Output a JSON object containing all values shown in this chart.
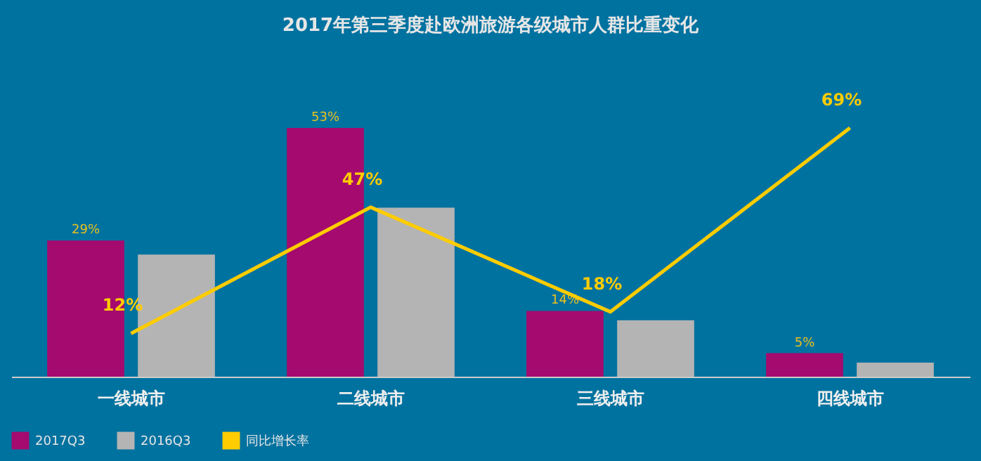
{
  "chart_data": {
    "type": "bar",
    "title": "2017年第三季度赴欧洲旅游各级城市人群比重变化",
    "categories": [
      "一线城市",
      "二线城市",
      "三线城市",
      "四线城市"
    ],
    "series": [
      {
        "name": "2017Q3",
        "color": "#a50a6e",
        "values": [
          29,
          53,
          14,
          5
        ],
        "value_labels": [
          "29%",
          "53%",
          "14%",
          "5%"
        ]
      },
      {
        "name": "2016Q3",
        "color": "#b4b4b4",
        "values": [
          26,
          36,
          12,
          3
        ]
      },
      {
        "name": "同比增长率",
        "type": "line",
        "axis": "y2",
        "color": "#ffcc00",
        "values": [
          12,
          47,
          18,
          69
        ],
        "value_labels": [
          "12%",
          "47%",
          "18%",
          "69%"
        ]
      }
    ],
    "tick_labels": "x",
    "grid": false,
    "legend": "bottom",
    "marker": "none",
    "line_style": "solid"
  }
}
